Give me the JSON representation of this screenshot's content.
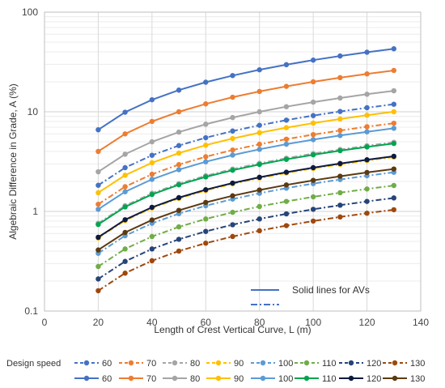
{
  "chart_data": {
    "type": "line",
    "xlabel": "Length of Crest Vertical Curve, L (m)",
    "ylabel": "Algebraic Difference in Grade, A (%)",
    "xlim": [
      0,
      140
    ],
    "xticks": [
      0,
      20,
      40,
      60,
      80,
      100,
      120,
      140
    ],
    "ylim": [
      0.1,
      100
    ],
    "yscale": "log",
    "yticks": [
      0.1,
      1,
      10,
      100
    ],
    "yticklabels": [
      "0.1",
      "1",
      "10",
      "100"
    ],
    "grid": true,
    "x": [
      20,
      30,
      40,
      50,
      60,
      70,
      80,
      90,
      100,
      110,
      120,
      130
    ],
    "annotation": "Solid lines for AVs",
    "legend": {
      "title": "Design speed",
      "position": "bottom"
    },
    "series": [
      {
        "name": "60",
        "style": "dashed",
        "color": "#4472C4",
        "values": [
          1.83,
          2.75,
          3.66,
          4.58,
          5.49,
          6.41,
          7.32,
          8.24,
          9.15,
          10.07,
          10.98,
          11.9
        ]
      },
      {
        "name": "70",
        "style": "dashed",
        "color": "#ED7D31",
        "values": [
          1.18,
          1.77,
          2.36,
          2.95,
          3.54,
          4.13,
          4.72,
          5.31,
          5.9,
          6.49,
          7.08,
          7.67
        ]
      },
      {
        "name": "80",
        "style": "dashed",
        "color": "#A5A5A5",
        "values": [
          0.76,
          1.14,
          1.52,
          1.9,
          2.28,
          2.66,
          3.04,
          3.42,
          3.8,
          4.18,
          4.56,
          4.94
        ]
      },
      {
        "name": "90",
        "style": "dashed",
        "color": "#FFC000",
        "values": [
          0.54,
          0.81,
          1.08,
          1.35,
          1.62,
          1.89,
          2.16,
          2.43,
          2.7,
          2.97,
          3.24,
          3.51
        ]
      },
      {
        "name": "100",
        "style": "dashed",
        "color": "#5B9BD5",
        "values": [
          0.38,
          0.57,
          0.76,
          0.95,
          1.14,
          1.33,
          1.52,
          1.71,
          1.9,
          2.09,
          2.28,
          2.47
        ]
      },
      {
        "name": "110",
        "style": "dashed",
        "color": "#70AD47",
        "values": [
          0.28,
          0.42,
          0.56,
          0.7,
          0.84,
          0.98,
          1.12,
          1.26,
          1.4,
          1.54,
          1.68,
          1.82
        ]
      },
      {
        "name": "120",
        "style": "dashed",
        "color": "#264478",
        "values": [
          0.21,
          0.315,
          0.42,
          0.525,
          0.63,
          0.735,
          0.84,
          0.945,
          1.05,
          1.155,
          1.26,
          1.365
        ]
      },
      {
        "name": "130",
        "style": "dashed",
        "color": "#9E480E",
        "values": [
          0.16,
          0.24,
          0.32,
          0.4,
          0.48,
          0.56,
          0.64,
          0.72,
          0.8,
          0.88,
          0.96,
          1.04
        ]
      },
      {
        "name": "60",
        "style": "solid",
        "color": "#4472C4",
        "values": [
          6.6,
          9.9,
          13.2,
          16.5,
          19.8,
          23.1,
          26.4,
          29.7,
          33.0,
          36.3,
          39.6,
          42.9
        ]
      },
      {
        "name": "70",
        "style": "solid",
        "color": "#ED7D31",
        "values": [
          4.0,
          6.0,
          8.0,
          10.0,
          12.0,
          14.0,
          16.0,
          18.0,
          20.0,
          22.0,
          24.0,
          26.0
        ]
      },
      {
        "name": "80",
        "style": "solid",
        "color": "#A5A5A5",
        "values": [
          2.5,
          3.75,
          5.0,
          6.25,
          7.5,
          8.75,
          10.0,
          11.25,
          12.5,
          13.75,
          15.0,
          16.25
        ]
      },
      {
        "name": "90",
        "style": "solid",
        "color": "#FFC000",
        "values": [
          1.54,
          2.31,
          3.08,
          3.85,
          4.62,
          5.39,
          6.16,
          6.93,
          7.7,
          8.47,
          9.24,
          10.01
        ]
      },
      {
        "name": "100",
        "style": "solid",
        "color": "#5B9BD5",
        "values": [
          1.05,
          1.575,
          2.1,
          2.625,
          3.15,
          3.675,
          4.2,
          4.725,
          5.25,
          5.775,
          6.3,
          6.825
        ]
      },
      {
        "name": "110",
        "style": "solid",
        "color": "#00A550",
        "values": [
          0.74,
          1.11,
          1.48,
          1.85,
          2.22,
          2.59,
          2.96,
          3.33,
          3.7,
          4.07,
          4.44,
          4.81
        ]
      },
      {
        "name": "120",
        "style": "solid",
        "color": "#0D1A40",
        "values": [
          0.55,
          0.825,
          1.1,
          1.375,
          1.65,
          1.925,
          2.2,
          2.475,
          2.75,
          3.025,
          3.3,
          3.575
        ]
      },
      {
        "name": "130",
        "style": "solid",
        "color": "#5C3A10",
        "values": [
          0.41,
          0.615,
          0.82,
          1.025,
          1.23,
          1.435,
          1.64,
          1.845,
          2.05,
          2.255,
          2.46,
          2.665
        ]
      }
    ]
  }
}
